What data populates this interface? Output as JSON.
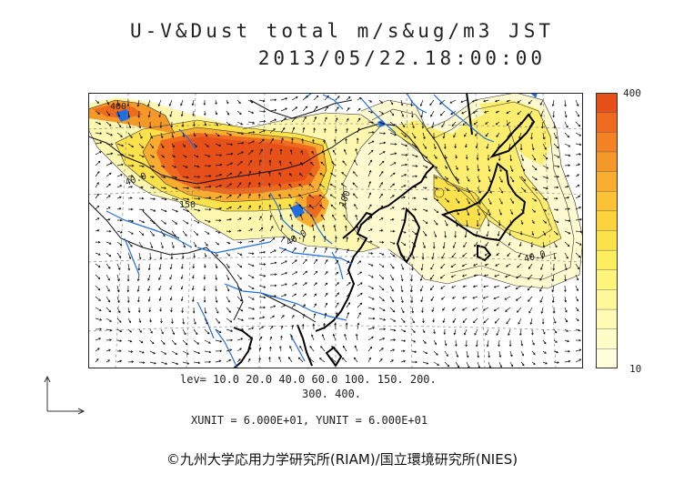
{
  "title": "U-V&Dust total m/s&ug/m3 JST",
  "datetime": "2013/05/22.18:00:00",
  "colorbar": {
    "max_label": "400",
    "min_label": "10",
    "colors": [
      "#e8501a",
      "#ee6a1e",
      "#f28224",
      "#f5982a",
      "#f8ad30",
      "#fac234",
      "#fbd33c",
      "#fce24a",
      "#fdee60",
      "#fef47c",
      "#fef89a",
      "#fefab4",
      "#fefcc9",
      "#fffddc"
    ]
  },
  "contour_labels": [
    "400",
    "40.0",
    "150",
    "100",
    "40.0",
    "40.0"
  ],
  "legend": {
    "levels_line1": "lev= 10.0 20.0 40.0 60.0 100. 150. 200.",
    "levels_line2": "300. 400.",
    "units": "XUNIT = 6.000E+01, YUNIT = 6.000E+01"
  },
  "copyright": "©九州大学応用力学研究所(RIAM)/国立環境研究所(NIES)"
}
